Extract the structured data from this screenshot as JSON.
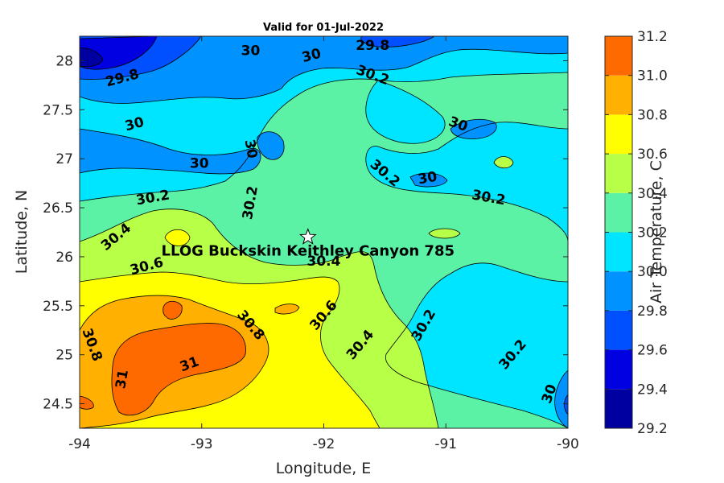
{
  "chart_data": {
    "type": "heatmap",
    "subtype": "filled-contour",
    "title": "Valid for 01-Jul-2022",
    "xlabel": "Longitude, E",
    "ylabel": "Latitude, N",
    "xlim": [
      -94,
      -90
    ],
    "ylim": [
      24.25,
      28.25
    ],
    "xticks": [
      -94,
      -93,
      -92,
      -91,
      -90
    ],
    "yticks": [
      24.5,
      25,
      25.5,
      26,
      26.5,
      27,
      27.5,
      28
    ],
    "colorbar": {
      "label": "Air Temperature, C",
      "range": [
        29.2,
        31.2
      ],
      "ticks": [
        "29.2",
        "29.4",
        "29.6",
        "29.8",
        "30.0",
        "30.2",
        "30.4",
        "30.6",
        "30.8",
        "31.0",
        "31.2"
      ],
      "levels": [
        29.2,
        29.4,
        29.6,
        29.8,
        30.0,
        30.2,
        30.4,
        30.6,
        30.8,
        31.0,
        31.2
      ],
      "colors": [
        "#0000a0",
        "#0000e0",
        "#0050ff",
        "#0092ff",
        "#00e5ff",
        "#5cf2a6",
        "#b8ff48",
        "#ffff00",
        "#ffb000",
        "#ff6a00"
      ]
    },
    "station": {
      "name": "LLOG Buckskin Keithley Canyon 785",
      "lon": -92.13,
      "lat": 26.2
    },
    "contour_labels": [
      {
        "text": "30",
        "lon": -92.6,
        "lat": 28.1,
        "angle": 0
      },
      {
        "text": "29.8",
        "lon": -91.6,
        "lat": 28.15,
        "angle": 0
      },
      {
        "text": "30",
        "lon": -92.1,
        "lat": 28.05,
        "angle": -15
      },
      {
        "text": "29.8",
        "lon": -93.65,
        "lat": 27.82,
        "angle": -15
      },
      {
        "text": "30.2",
        "lon": -91.6,
        "lat": 27.85,
        "angle": 20
      },
      {
        "text": "30",
        "lon": -93.55,
        "lat": 27.35,
        "angle": -15
      },
      {
        "text": "30",
        "lon": -90.9,
        "lat": 27.35,
        "angle": 20
      },
      {
        "text": "30",
        "lon": -92.6,
        "lat": 27.1,
        "angle": 80
      },
      {
        "text": "30",
        "lon": -93.02,
        "lat": 26.95,
        "angle": 0
      },
      {
        "text": "30.2",
        "lon": -91.5,
        "lat": 26.85,
        "angle": 40
      },
      {
        "text": "30",
        "lon": -91.15,
        "lat": 26.8,
        "angle": -10
      },
      {
        "text": "30.2",
        "lon": -90.65,
        "lat": 26.6,
        "angle": 10
      },
      {
        "text": "30.2",
        "lon": -93.4,
        "lat": 26.6,
        "angle": -10
      },
      {
        "text": "30.2",
        "lon": -92.6,
        "lat": 26.55,
        "angle": -80
      },
      {
        "text": "30.4",
        "lon": -93.7,
        "lat": 26.2,
        "angle": -40
      },
      {
        "text": "30.4",
        "lon": -92.0,
        "lat": 25.95,
        "angle": 0
      },
      {
        "text": "30.6",
        "lon": -93.45,
        "lat": 25.9,
        "angle": -15
      },
      {
        "text": "30.8",
        "lon": -92.6,
        "lat": 25.3,
        "angle": 50
      },
      {
        "text": "30.6",
        "lon": -92.0,
        "lat": 25.4,
        "angle": -50
      },
      {
        "text": "30.4",
        "lon": -91.7,
        "lat": 25.1,
        "angle": -50
      },
      {
        "text": "30.2",
        "lon": -91.18,
        "lat": 25.3,
        "angle": -60
      },
      {
        "text": "30.8",
        "lon": -93.9,
        "lat": 25.1,
        "angle": 70
      },
      {
        "text": "31",
        "lon": -93.1,
        "lat": 24.9,
        "angle": -20
      },
      {
        "text": "31",
        "lon": -93.65,
        "lat": 24.75,
        "angle": -80
      },
      {
        "text": "30.2",
        "lon": -90.45,
        "lat": 25.0,
        "angle": -50
      },
      {
        "text": "30",
        "lon": -90.15,
        "lat": 24.6,
        "angle": -70
      }
    ]
  }
}
